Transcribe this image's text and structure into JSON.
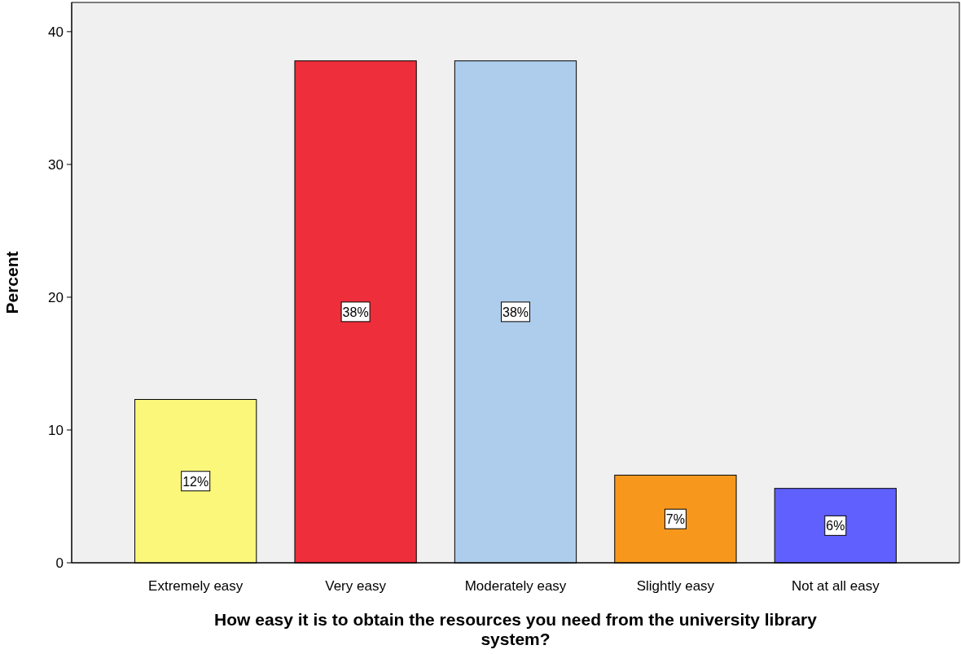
{
  "chart_data": {
    "type": "bar",
    "xlabel": "How easy it is to obtain the resources you need from the university library system?",
    "ylabel": "Percent",
    "categories": [
      "Extremely easy",
      "Very easy",
      "Moderately easy",
      "Slightly easy",
      "Not at all easy"
    ],
    "values": [
      12.3,
      37.8,
      37.8,
      6.6,
      5.6
    ],
    "colors": [
      "#fbf77a",
      "#ee2e3a",
      "#aecdec",
      "#f7981d",
      "#6060ff"
    ],
    "value_labels": [
      "12%",
      "38%",
      "38%",
      "7%",
      "6%"
    ],
    "ylim": [
      0,
      42.2
    ],
    "yticks": [
      0,
      10,
      20,
      30,
      40
    ],
    "grid": false
  }
}
